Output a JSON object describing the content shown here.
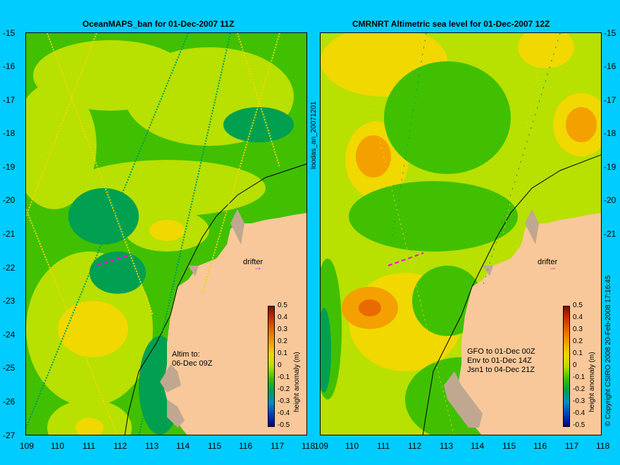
{
  "left_panel": {
    "title": "OceanMAPS_ban for 01-Dec-2007 11Z",
    "note": "Altim to:\n06-Dec 09Z",
    "drifter_label": "drifter",
    "colorbar_label": "height anomaly (m)"
  },
  "right_panel": {
    "title": "CMRNRT Altimetric sea level  for 01-Dec-2007 12Z",
    "note": "GFO to 01-Dec 00Z\nEnv to 01-Dec 14Z\nJsn1 to 04-Dec 21Z",
    "drifter_label": "drifter",
    "colorbar_label": "height anomaly (m)"
  },
  "middle_label": "loodas_an_20071201",
  "copyright": "© Copyright CSIRO 2008   20-Feb-2008 17:16:45",
  "axes": {
    "x_ticks": [
      "109",
      "110",
      "111",
      "112",
      "113",
      "114",
      "115",
      "116",
      "117",
      "118"
    ],
    "y_ticks": [
      "-15",
      "-16",
      "-17",
      "-18",
      "-19",
      "-20",
      "-21",
      "-22",
      "-23",
      "-24",
      "-25",
      "-26",
      "-27"
    ],
    "lon_range": [
      109,
      118
    ],
    "lat_range": [
      -27,
      -15
    ]
  },
  "colorbar": {
    "ticks": [
      "0.5",
      "0.4",
      "0.3",
      "0.2",
      "0.1",
      "0",
      "-0.1",
      "-0.2",
      "-0.3",
      "-0.4",
      "-0.5"
    ],
    "range": [
      -0.5,
      0.5
    ],
    "colors": [
      "#7a1000",
      "#c83200",
      "#e86a00",
      "#f4a000",
      "#f0d800",
      "#b8e000",
      "#40c000",
      "#00a050",
      "#0090c0",
      "#0040c0",
      "#000080"
    ]
  },
  "colors": {
    "background": "#00ccff",
    "land": "#f8c89a",
    "reef": "#c0a890",
    "drifter_arrow": "#ff00ff"
  }
}
